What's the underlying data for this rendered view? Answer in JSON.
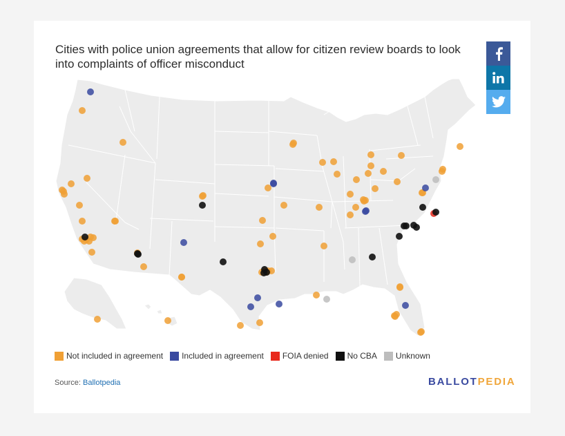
{
  "title": "Cities with police union agreements that allow for citizen review boards to look into complaints of officer misconduct",
  "share": {
    "facebook_icon": "facebook-icon",
    "linkedin_icon": "linkedin-icon",
    "twitter_icon": "twitter-icon",
    "colors": {
      "facebook": "#3b5998",
      "linkedin": "#0e76a8",
      "twitter": "#55acee"
    }
  },
  "categories": {
    "not_included": {
      "label": "Not included in agreement",
      "color": "#f0a035"
    },
    "included": {
      "label": "Included in agreement",
      "color": "#3a4aa0"
    },
    "foia_denied": {
      "label": "FOIA denied",
      "color": "#e8291c"
    },
    "no_cba": {
      "label": "No CBA",
      "color": "#111111"
    },
    "unknown": {
      "label": "Unknown",
      "color": "#bdbdbd"
    }
  },
  "legend_order": [
    "not_included",
    "included",
    "foia_denied",
    "no_cba",
    "unknown"
  ],
  "city_counts": {
    "not_included": 73,
    "included": 11,
    "foia_denied": 1,
    "no_cba": 16,
    "unknown": 3
  },
  "source": {
    "label": "Source:",
    "link_text": "Ballotpedia"
  },
  "brand": {
    "part1": "BALLOT",
    "part2": "PEDIA"
  }
}
